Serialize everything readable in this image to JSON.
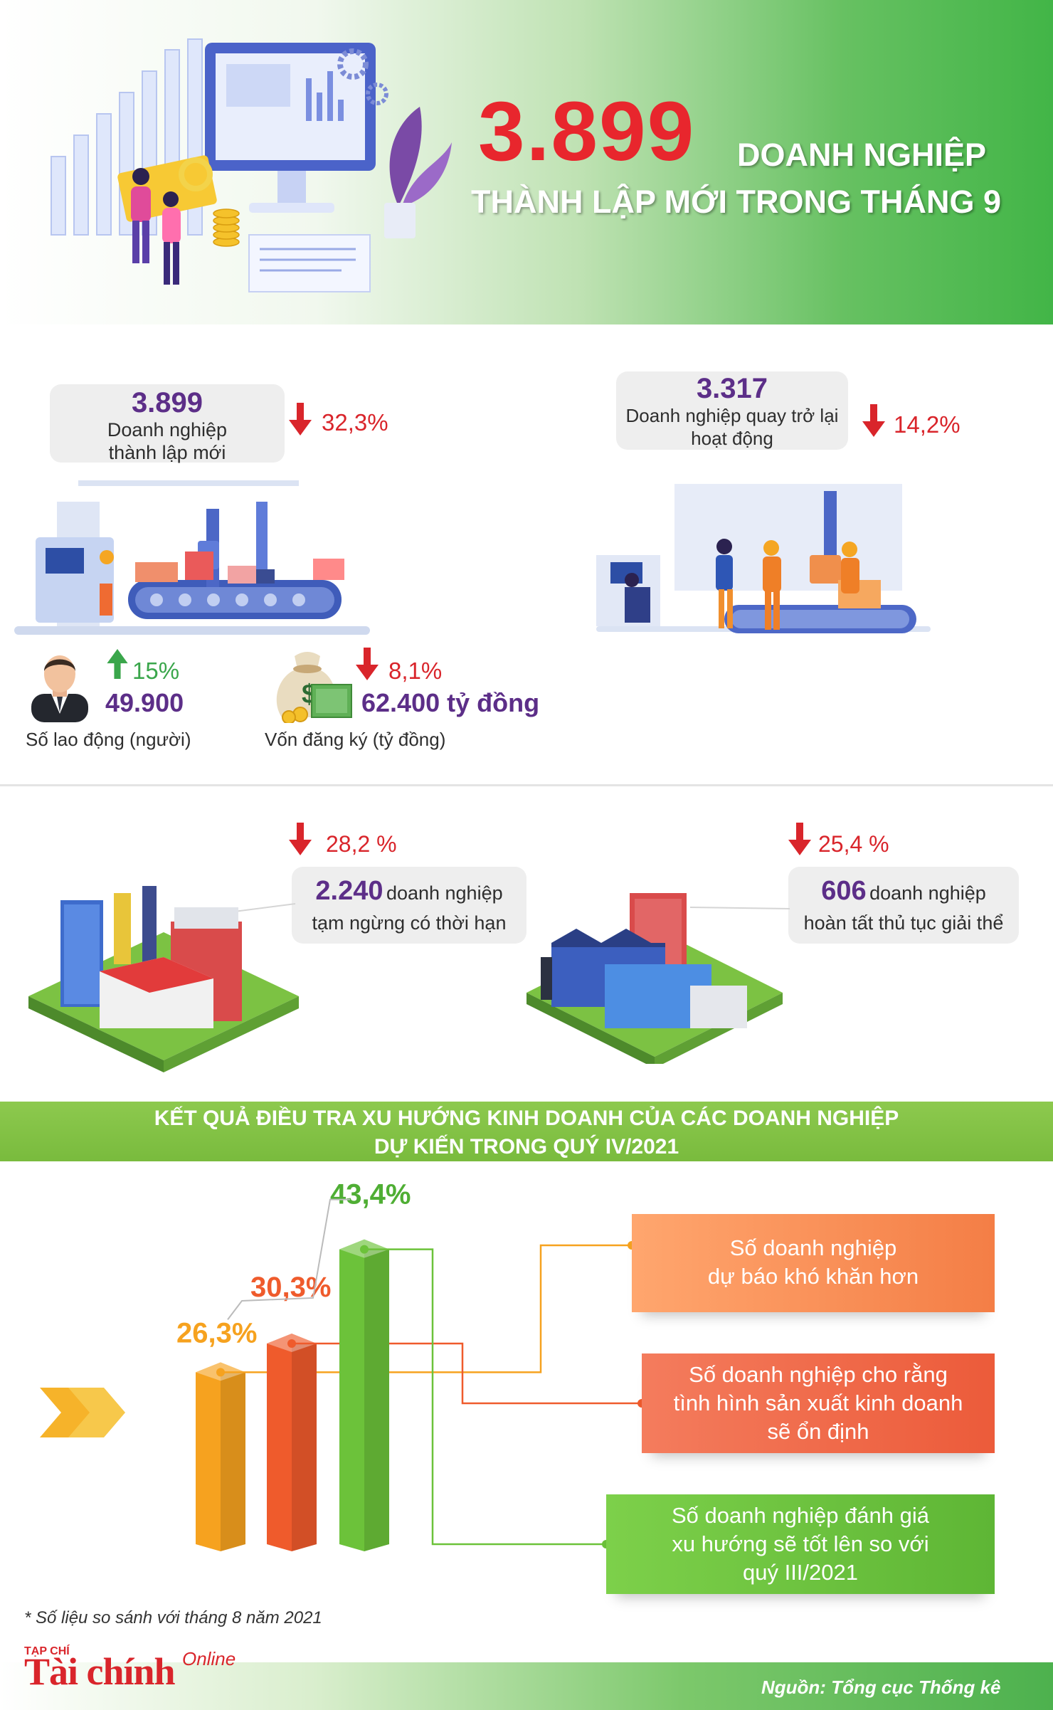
{
  "header": {
    "number": "3.899",
    "line1_suffix": "DOANH NGHIỆP",
    "line2": "THÀNH LẬP MỚI TRONG THÁNG 9"
  },
  "new_businesses": {
    "value": "3.899",
    "label_line1": "Doanh nghiệp",
    "label_line2": "thành lập mới",
    "change": "32,3%",
    "direction": "down"
  },
  "returning_businesses": {
    "value": "3.317",
    "label_line1": "Doanh nghiệp quay trở lại",
    "label_line2": "hoạt động",
    "change": "14,2%",
    "direction": "down"
  },
  "workers": {
    "change": "15%",
    "direction": "up",
    "value": "49.900",
    "label": "Số lao động (người)"
  },
  "capital": {
    "change": "8,1%",
    "direction": "down",
    "value": "62.400 tỷ đồng",
    "label": "Vốn đăng ký  (tỷ đồng)"
  },
  "suspended": {
    "change": "28,2 %",
    "value": "2.240",
    "suffix": "doanh nghiệp",
    "label": "tạm ngừng có thời hạn"
  },
  "dissolved": {
    "change": "25,4 %",
    "value": "606",
    "suffix": "doanh nghiệp",
    "label": "hoàn tất  thủ tục giải thể"
  },
  "survey": {
    "title_line1": "KẾT QUẢ ĐIỀU TRA XU HƯỚNG KINH DOANH CỦA CÁC DOANH NGHIỆP",
    "title_line2": "DỰ KIẾN TRONG QUÝ IV/2021",
    "bars": [
      {
        "value": 26.3,
        "label": "26,3%",
        "color": "#f6a21f"
      },
      {
        "value": 30.3,
        "label": "30,3%",
        "color": "#ef5b2c"
      },
      {
        "value": 43.4,
        "label": "43,4%",
        "color": "#6cc23a"
      }
    ],
    "boxes": [
      {
        "line1": "Số doanh nghiệp",
        "line2": "dự báo khó khăn hơn",
        "line3": "",
        "color": "#f7915a"
      },
      {
        "line1": "Số doanh nghiệp cho rằng",
        "line2": "tình hình sản xuất kinh doanh",
        "line3": "sẽ ổn định",
        "color": "#f16d4f"
      },
      {
        "line1": "Số doanh nghiệp đánh giá",
        "line2": "xu hướng sẽ tốt lên so với",
        "line3": "quý III/2021",
        "color": "#6cc23a"
      }
    ]
  },
  "footnote": "* Số liệu so sánh với  tháng 8 năm 2021",
  "logo": {
    "small": "TẠP CHÍ",
    "main": "Tài chính",
    "online": "Online"
  },
  "source": "Nguồn:  Tổng cục Thống kê"
}
